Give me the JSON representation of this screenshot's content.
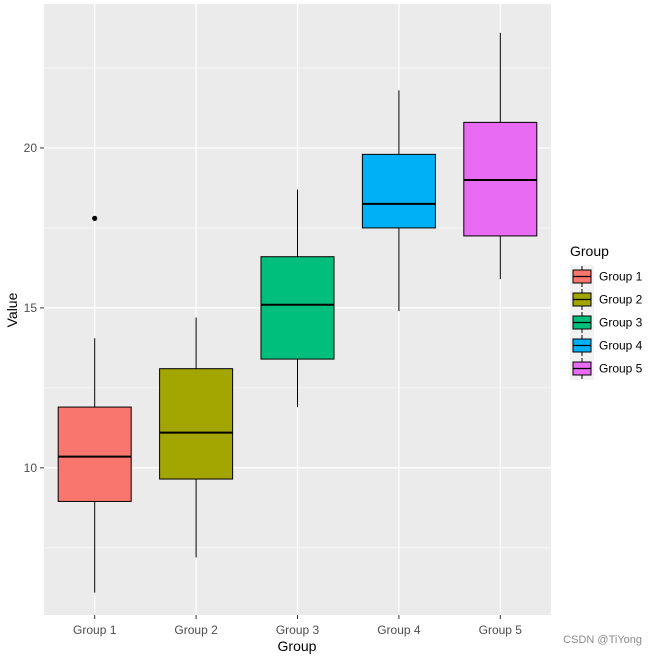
{
  "chart_data": {
    "type": "boxplot",
    "title": "",
    "xlabel": "Group",
    "ylabel": "Value",
    "categories": [
      "Group 1",
      "Group 2",
      "Group 3",
      "Group 4",
      "Group 5"
    ],
    "ylim": [
      5.4,
      24.5
    ],
    "yticks": [
      10,
      15,
      20
    ],
    "ytick_labels": [
      "10",
      "15",
      "20"
    ],
    "grid": true,
    "legend": {
      "title": "Group",
      "position": "right",
      "entries": [
        "Group 1",
        "Group 2",
        "Group 3",
        "Group 4",
        "Group 5"
      ]
    },
    "boxes": [
      {
        "group": "Group 1",
        "whisker_low": 6.1,
        "q1": 8.95,
        "median": 10.35,
        "q3": 11.9,
        "whisker_high": 14.05,
        "outliers": [
          17.8
        ],
        "color": "#F8766D"
      },
      {
        "group": "Group 2",
        "whisker_low": 7.2,
        "q1": 9.65,
        "median": 11.1,
        "q3": 13.1,
        "whisker_high": 14.7,
        "outliers": [],
        "color": "#A3A500"
      },
      {
        "group": "Group 3",
        "whisker_low": 11.9,
        "q1": 13.4,
        "median": 15.1,
        "q3": 16.6,
        "whisker_high": 18.7,
        "outliers": [],
        "color": "#00BF7D"
      },
      {
        "group": "Group 4",
        "whisker_low": 14.9,
        "q1": 17.5,
        "median": 18.25,
        "q3": 19.8,
        "whisker_high": 21.8,
        "outliers": [],
        "color": "#00B0F6"
      },
      {
        "group": "Group 5",
        "whisker_low": 15.9,
        "q1": 17.25,
        "median": 19.0,
        "q3": 20.8,
        "whisker_high": 23.6,
        "outliers": [],
        "color": "#E76BF3"
      }
    ],
    "panel_background": "#EBEBEB",
    "grid_color": "#FFFFFF"
  },
  "watermark": "CSDN @TiYong"
}
